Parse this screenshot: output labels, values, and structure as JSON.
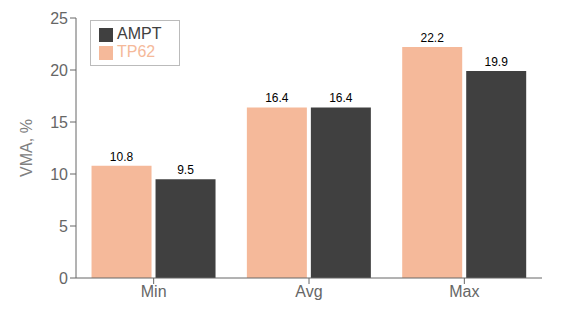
{
  "chart_data": {
    "type": "bar",
    "categories": [
      "Min",
      "Avg",
      "Max"
    ],
    "series": [
      {
        "name": "TP62",
        "color": "#F5B99A",
        "values": [
          10.8,
          16.4,
          22.2
        ]
      },
      {
        "name": "AMPT",
        "color": "#404040",
        "values": [
          9.5,
          16.4,
          19.9
        ]
      }
    ],
    "ylabel": "VMA, %",
    "ylim": [
      0,
      25
    ],
    "yticks": [
      0,
      5,
      10,
      15,
      20,
      25
    ],
    "grid": false,
    "legend": "upper left",
    "data_labels": true
  }
}
